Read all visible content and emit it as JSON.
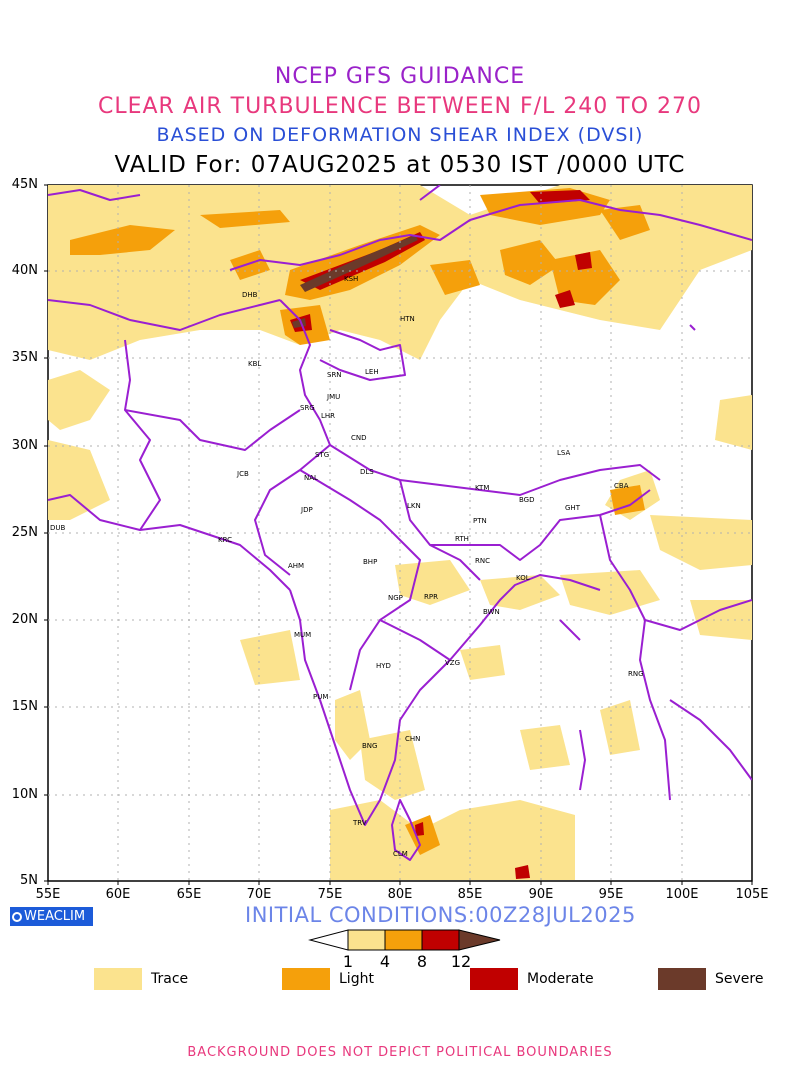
{
  "titles": {
    "line1": "NCEP GFS GUIDANCE",
    "line2": "CLEAR AIR TURBULENCE BETWEEN F/L 240 TO 270",
    "line3": "BASED ON DEFORMATION SHEAR INDEX (DVSI)",
    "line4": "VALID For: 07AUG2025 at 0530 IST /0000 UTC"
  },
  "axes": {
    "lat_labels": [
      "45N",
      "40N",
      "35N",
      "30N",
      "25N",
      "20N",
      "15N",
      "10N",
      "5N"
    ],
    "lon_labels": [
      "55E",
      "60E",
      "65E",
      "70E",
      "75E",
      "80E",
      "85E",
      "90E",
      "95E",
      "100E",
      "105E"
    ]
  },
  "stations": [
    {
      "code": "DHB"
    },
    {
      "code": "KSH"
    },
    {
      "code": "HTN"
    },
    {
      "code": "KBL"
    },
    {
      "code": "SRN"
    },
    {
      "code": "LEH"
    },
    {
      "code": "JMU"
    },
    {
      "code": "SRG"
    },
    {
      "code": "LHR"
    },
    {
      "code": "CND"
    },
    {
      "code": "STG"
    },
    {
      "code": "DLS"
    },
    {
      "code": "LSA"
    },
    {
      "code": "JCB"
    },
    {
      "code": "NAL"
    },
    {
      "code": "KTM"
    },
    {
      "code": "BGD"
    },
    {
      "code": "CBA"
    },
    {
      "code": "GHT"
    },
    {
      "code": "JDP"
    },
    {
      "code": "LKN"
    },
    {
      "code": "PTN"
    },
    {
      "code": "DUB"
    },
    {
      "code": "KRC"
    },
    {
      "code": "RTH"
    },
    {
      "code": "AHM"
    },
    {
      "code": "BHP"
    },
    {
      "code": "RNC"
    },
    {
      "code": "KOL"
    },
    {
      "code": "NGP"
    },
    {
      "code": "RPR"
    },
    {
      "code": "BWN"
    },
    {
      "code": "MUM"
    },
    {
      "code": "HYD"
    },
    {
      "code": "VZG"
    },
    {
      "code": "RNG"
    },
    {
      "code": "PUM"
    },
    {
      "code": "CHN"
    },
    {
      "code": "BNG"
    },
    {
      "code": "TRV"
    },
    {
      "code": "CLM"
    }
  ],
  "logo": "WEACLIM",
  "initial_conditions": "INITIAL CONDITIONS:00Z28JUL2025",
  "colorbar": {
    "ticks": [
      "1",
      "4",
      "8",
      "12"
    ],
    "colors": [
      "#fbe38e",
      "#f5a00b",
      "#c00000",
      "#6b3a2a"
    ]
  },
  "legend": [
    {
      "label": "Trace",
      "color": "#fbe38e"
    },
    {
      "label": "Light",
      "color": "#f5a00b"
    },
    {
      "label": "Moderate",
      "color": "#c00000"
    },
    {
      "label": "Severe",
      "color": "#6b3a2a"
    }
  ],
  "colors": {
    "boundary": "#9a1fd1",
    "grid": "#b0b0b0"
  },
  "footer": "BACKGROUND DOES NOT DEPICT POLITICAL BOUNDARIES"
}
